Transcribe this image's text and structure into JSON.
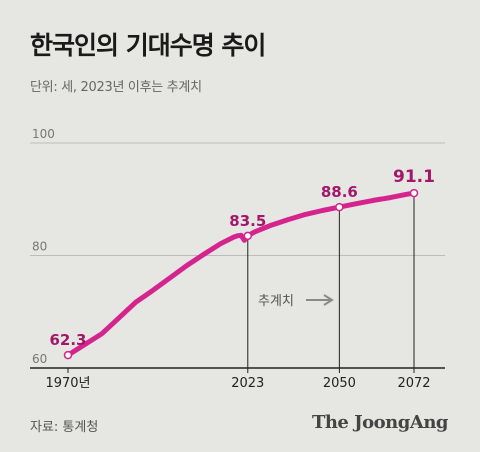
{
  "title": "한국인의 기대수명 추이",
  "subtitle": "단위: 세, 2023년 이후는 추계치",
  "source": "자료: 통계청",
  "brand": "The JoongAng",
  "colors": {
    "line": "#d6248f",
    "label": "#a3176b",
    "axis": "#222222",
    "grid": "#bcbcbc",
    "background": "#e6e6e3"
  },
  "chart_data": {
    "type": "line",
    "title": "한국인의 기대수명 추이",
    "xlabel": "",
    "ylabel": "",
    "ylim": [
      60,
      100
    ],
    "xlim": [
      1970,
      2072
    ],
    "y_ticks": [
      60,
      80,
      100
    ],
    "x_ticks": [
      "1970년",
      "2023",
      "2050",
      "2072"
    ],
    "grid": true,
    "series": [
      {
        "x": [
          1970,
          1975,
          1980,
          1985,
          1990,
          1995,
          2000,
          2005,
          2010,
          2015,
          2019,
          2020,
          2021,
          2022,
          2023,
          2025,
          2030,
          2035,
          2040,
          2045,
          2050,
          2055,
          2060,
          2065,
          2070,
          2072
        ],
        "values": [
          62.3,
          64.2,
          66.1,
          68.9,
          71.7,
          73.8,
          76.0,
          78.2,
          80.2,
          82.1,
          83.3,
          83.5,
          83.6,
          82.7,
          83.5,
          84.2,
          85.4,
          86.4,
          87.3,
          88.0,
          88.6,
          89.2,
          89.8,
          90.3,
          90.9,
          91.1
        ]
      }
    ],
    "highlights": [
      {
        "x": 1970,
        "value": "62.3"
      },
      {
        "x": 2023,
        "value": "83.5"
      },
      {
        "x": 2050,
        "value": "88.6"
      },
      {
        "x": 2072,
        "value": "91.1"
      }
    ],
    "projection_label": "추계치",
    "projection_start": 2023
  }
}
